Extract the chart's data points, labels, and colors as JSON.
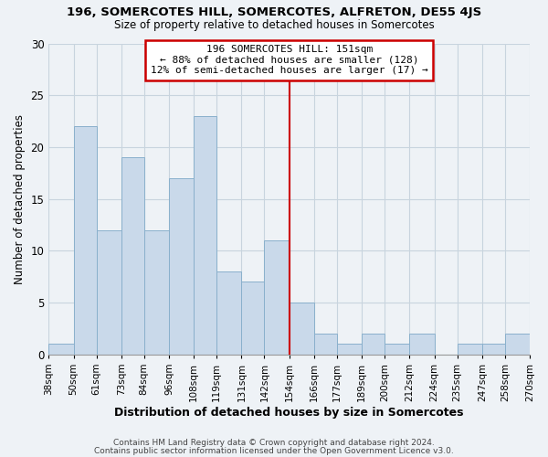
{
  "title1": "196, SOMERCOTES HILL, SOMERCOTES, ALFRETON, DE55 4JS",
  "title2": "Size of property relative to detached houses in Somercotes",
  "xlabel": "Distribution of detached houses by size in Somercotes",
  "ylabel": "Number of detached properties",
  "bin_labels": [
    "38sqm",
    "50sqm",
    "61sqm",
    "73sqm",
    "84sqm",
    "96sqm",
    "108sqm",
    "119sqm",
    "131sqm",
    "142sqm",
    "154sqm",
    "166sqm",
    "177sqm",
    "189sqm",
    "200sqm",
    "212sqm",
    "224sqm",
    "235sqm",
    "247sqm",
    "258sqm",
    "270sqm"
  ],
  "bin_edges": [
    38,
    50,
    61,
    73,
    84,
    96,
    108,
    119,
    131,
    142,
    154,
    166,
    177,
    189,
    200,
    212,
    224,
    235,
    247,
    258,
    270
  ],
  "bar_heights": [
    1,
    22,
    12,
    19,
    12,
    17,
    23,
    8,
    7,
    11,
    5,
    2,
    1,
    2,
    1,
    2,
    0,
    1,
    1,
    2,
    0
  ],
  "bar_color": "#c9d9ea",
  "bar_edgecolor": "#8ab0cc",
  "reference_line_x": 154,
  "reference_line_color": "#cc0000",
  "annotation_title": "196 SOMERCOTES HILL: 151sqm",
  "annotation_line1": "← 88% of detached houses are smaller (128)",
  "annotation_line2": "12% of semi-detached houses are larger (17) →",
  "annotation_box_edgecolor": "#cc0000",
  "annotation_box_facecolor": "#ffffff",
  "ylim": [
    0,
    30
  ],
  "yticks": [
    0,
    5,
    10,
    15,
    20,
    25,
    30
  ],
  "footer1": "Contains HM Land Registry data © Crown copyright and database right 2024.",
  "footer2": "Contains public sector information licensed under the Open Government Licence v3.0.",
  "grid_color": "#c8d4de",
  "background_color": "#eef2f6"
}
